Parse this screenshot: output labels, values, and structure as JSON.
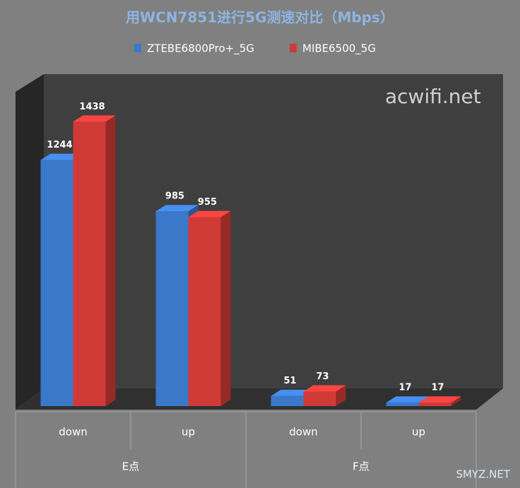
{
  "chart_data": {
    "type": "bar3d",
    "title": "用WCN7851进行5G测速对比（Mbps）",
    "categories": [
      "down",
      "up",
      "down",
      "up"
    ],
    "groups": [
      "E点",
      "F点"
    ],
    "series": [
      {
        "name": "ZTEBE6800Pro+_5G",
        "color": "#3a78c9",
        "values": [
          1244,
          985,
          51,
          17
        ]
      },
      {
        "name": "MIBE6500_5G",
        "color": "#d03a36",
        "values": [
          1438,
          955,
          73,
          17
        ]
      }
    ],
    "ylim": [
      0,
      1600
    ],
    "legend": "top",
    "watermarks": [
      "acwifi.net",
      "SMYZ.NET"
    ]
  }
}
